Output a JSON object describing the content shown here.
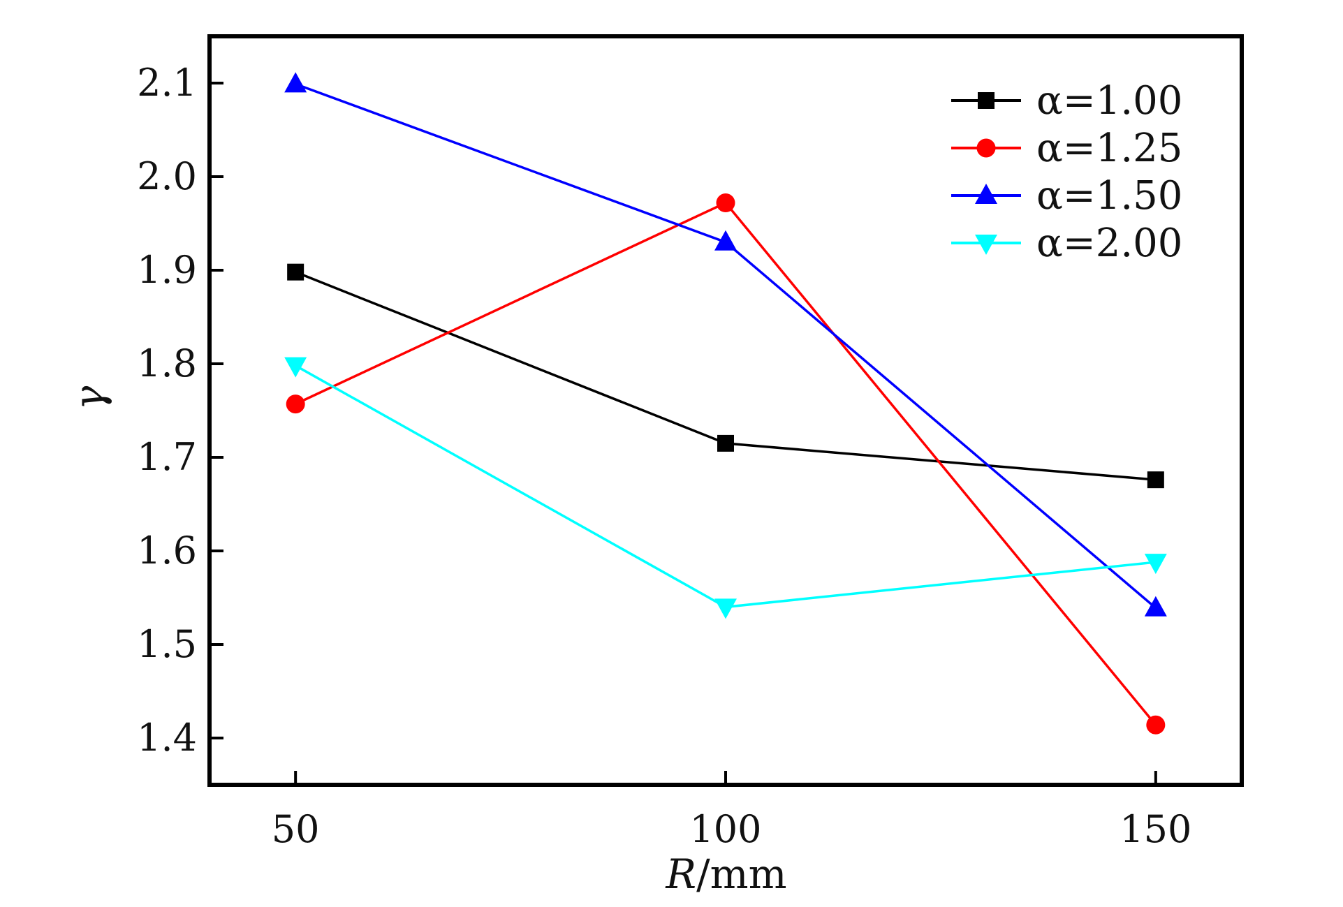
{
  "chart_data": {
    "type": "line",
    "x": [
      50,
      100,
      150
    ],
    "xlabel": {
      "var": "R",
      "unit": "/mm"
    },
    "ylabel": "γ",
    "xlim": [
      40,
      160
    ],
    "ylim": [
      1.35,
      2.15
    ],
    "xticks": [
      "50",
      "100",
      "150"
    ],
    "yticks": [
      "1.4",
      "1.5",
      "1.6",
      "1.7",
      "1.8",
      "1.9",
      "2.0",
      "2.1"
    ],
    "grid": false,
    "legend_position": "top-right",
    "series": [
      {
        "name": "α=1.00",
        "color": "#000000",
        "marker": "square",
        "values": [
          1.898,
          1.715,
          1.676
        ]
      },
      {
        "name": "α=1.25",
        "color": "#ff0000",
        "marker": "circle",
        "values": [
          1.757,
          1.972,
          1.414
        ]
      },
      {
        "name": "α=1.50",
        "color": "#0000ff",
        "marker": "triangle-up",
        "values": [
          2.099,
          1.93,
          1.539
        ]
      },
      {
        "name": "α=2.00",
        "color": "#00ffff",
        "marker": "triangle-down",
        "values": [
          1.798,
          1.54,
          1.588
        ]
      }
    ]
  }
}
